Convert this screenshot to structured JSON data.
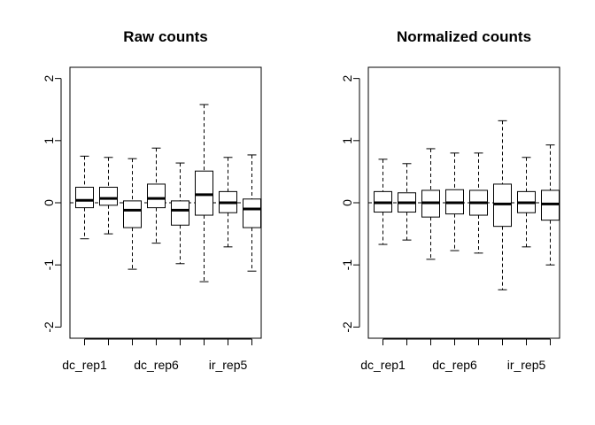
{
  "chart_data": [
    {
      "type": "boxplot",
      "title": "Raw counts",
      "xlabel": "",
      "ylabel": "",
      "ylim": [
        -2,
        2
      ],
      "yticks": [
        -2,
        -1,
        0,
        1,
        2
      ],
      "ytick_labels": [
        "-2",
        "-1",
        "0",
        "1",
        "2"
      ],
      "xtick_labels": [
        "dc_rep1",
        "dc_rep6",
        "ir_rep5"
      ],
      "xtick_label_at": [
        1,
        4,
        7
      ],
      "reference_line": 0,
      "boxes": [
        {
          "q_low": -0.08,
          "whisk_low": -0.58,
          "median": 0.04,
          "q_high": 0.25,
          "whisk_high": 0.75
        },
        {
          "q_low": -0.04,
          "whisk_low": -0.5,
          "median": 0.07,
          "q_high": 0.25,
          "whisk_high": 0.73
        },
        {
          "q_low": -0.4,
          "whisk_low": -1.07,
          "median": -0.12,
          "q_high": 0.03,
          "whisk_high": 0.71
        },
        {
          "q_low": -0.08,
          "whisk_low": -0.65,
          "median": 0.07,
          "q_high": 0.3,
          "whisk_high": 0.88
        },
        {
          "q_low": -0.36,
          "whisk_low": -0.98,
          "median": -0.12,
          "q_high": 0.03,
          "whisk_high": 0.64
        },
        {
          "q_low": -0.2,
          "whisk_low": -1.27,
          "median": 0.13,
          "q_high": 0.51,
          "whisk_high": 1.58
        },
        {
          "q_low": -0.16,
          "whisk_low": -0.71,
          "median": 0.0,
          "q_high": 0.18,
          "whisk_high": 0.73
        },
        {
          "q_low": -0.4,
          "whisk_low": -1.1,
          "median": -0.1,
          "q_high": 0.06,
          "whisk_high": 0.77
        }
      ]
    },
    {
      "type": "boxplot",
      "title": "Normalized counts",
      "xlabel": "",
      "ylabel": "",
      "ylim": [
        -2,
        2
      ],
      "yticks": [
        -2,
        -1,
        0,
        1,
        2
      ],
      "ytick_labels": [
        "-2",
        "-1",
        "0",
        "1",
        "2"
      ],
      "xtick_labels": [
        "dc_rep1",
        "dc_rep6",
        "ir_rep5"
      ],
      "xtick_label_at": [
        1,
        4,
        7
      ],
      "reference_line": 0,
      "boxes": [
        {
          "q_low": -0.15,
          "whisk_low": -0.67,
          "median": 0.0,
          "q_high": 0.18,
          "whisk_high": 0.7
        },
        {
          "q_low": -0.15,
          "whisk_low": -0.6,
          "median": 0.0,
          "q_high": 0.16,
          "whisk_high": 0.63
        },
        {
          "q_low": -0.23,
          "whisk_low": -0.91,
          "median": 0.0,
          "q_high": 0.2,
          "whisk_high": 0.87
        },
        {
          "q_low": -0.18,
          "whisk_low": -0.77,
          "median": 0.0,
          "q_high": 0.21,
          "whisk_high": 0.8
        },
        {
          "q_low": -0.2,
          "whisk_low": -0.81,
          "median": 0.0,
          "q_high": 0.2,
          "whisk_high": 0.8
        },
        {
          "q_low": -0.38,
          "whisk_low": -1.4,
          "median": -0.02,
          "q_high": 0.3,
          "whisk_high": 1.32
        },
        {
          "q_low": -0.16,
          "whisk_low": -0.71,
          "median": 0.0,
          "q_high": 0.18,
          "whisk_high": 0.73
        },
        {
          "q_low": -0.28,
          "whisk_low": -1.0,
          "median": -0.02,
          "q_high": 0.2,
          "whisk_high": 0.93
        }
      ]
    }
  ]
}
